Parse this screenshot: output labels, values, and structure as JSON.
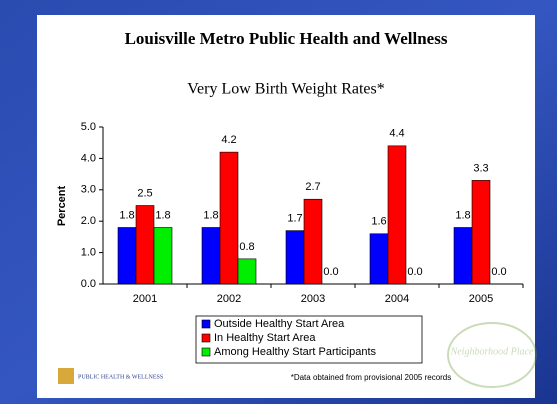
{
  "chart_data": {
    "type": "bar",
    "title": "Louisville Metro Public Health and Wellness",
    "subtitle": "Very Low Birth Weight Rates*",
    "ylabel": "Percent",
    "categories": [
      "2001",
      "2002",
      "2003",
      "2004",
      "2005"
    ],
    "series": [
      {
        "name": "Outside Healthy Start Area",
        "color": "#0000ff",
        "values": [
          1.8,
          1.8,
          1.7,
          1.6,
          1.8
        ]
      },
      {
        "name": "In Healthy Start Area",
        "color": "#ff0000",
        "values": [
          2.5,
          4.2,
          2.7,
          4.4,
          3.3
        ]
      },
      {
        "name": "Among Healthy Start Participants",
        "color": "#00ee00",
        "values": [
          1.8,
          0.8,
          0,
          0,
          0
        ],
        "value_labels": [
          "1.8",
          "0.8",
          "0.0",
          "0.0",
          "0.0"
        ]
      }
    ],
    "ylim": [
      0,
      5
    ],
    "yticks": [
      {
        "value": 0,
        "label": "0.0"
      },
      {
        "value": 1,
        "label": "1.0"
      },
      {
        "value": 2,
        "label": "2.0"
      },
      {
        "value": 3,
        "label": "3.0"
      },
      {
        "value": 4,
        "label": "4.0"
      },
      {
        "value": 5,
        "label": "5.0"
      }
    ],
    "legend": "bottom",
    "footnote": "*Data obtained from provisional 2005 records"
  },
  "logos": {
    "left": "PUBLIC HEALTH & WELLNESS",
    "right": "Neighborhood Place"
  }
}
